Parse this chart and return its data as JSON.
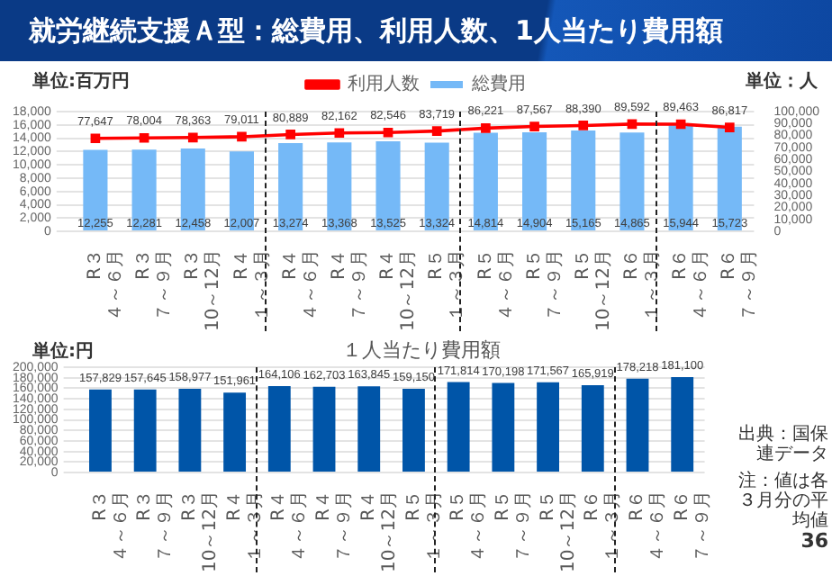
{
  "chart_data": [
    {
      "type": "bar",
      "title": "就労継続支援Ａ型：総費用、利用人数、1人当たり費用額",
      "ylabel": "単位:百万円",
      "y2label": "単位：人",
      "categories": [
        "R３４～６月",
        "R３７～９月",
        "R３10～12月",
        "R４１～３月",
        "R４４～６月",
        "R４７～９月",
        "R４10～12月",
        "R５１～３月",
        "R５４～６月",
        "R５７～９月",
        "R５10～12月",
        "R６１～３月",
        "R６４～６月",
        "R６７～９月"
      ],
      "series": [
        {
          "name": "総費用",
          "type": "bar",
          "color": "#75b9f7",
          "values": [
            12255,
            12281,
            12458,
            12007,
            13274,
            13368,
            13525,
            13324,
            14814,
            14904,
            15165,
            14865,
            15944,
            15723
          ],
          "value_labels": [
            "12,255",
            "12,281",
            "12,458",
            "12,007",
            "13,274",
            "13,368",
            "13,525",
            "13,324",
            "14,814",
            "14,904",
            "15,165",
            "14,865",
            "15,944",
            "15,723"
          ]
        },
        {
          "name": "利用人数",
          "type": "line",
          "axis": "y2",
          "color": "#ff0000",
          "values": [
            77647,
            78004,
            78363,
            79011,
            80889,
            82162,
            82546,
            83719,
            86221,
            87567,
            88390,
            89592,
            89463,
            86817
          ],
          "value_labels": [
            "77,647",
            "78,004",
            "78,363",
            "79,011",
            "80,889",
            "82,162",
            "82,546",
            "83,719",
            "86,221",
            "87,567",
            "88,390",
            "89,592",
            "89,463",
            "86,817"
          ]
        }
      ],
      "ylim": [
        0,
        18000
      ],
      "yticks": [
        0,
        {
          "value": 2000,
          "label": "2,000"
        },
        {
          "value": 4000,
          "label": "4,000"
        },
        {
          "value": 6000,
          "label": "6,000"
        },
        {
          "value": 8000,
          "label": "8,000"
        },
        {
          "value": 10000,
          "label": "10,000"
        },
        {
          "value": 12000,
          "label": "12,000"
        },
        {
          "value": 14000,
          "label": "14,000"
        },
        {
          "value": 16000,
          "label": "16,000"
        },
        {
          "value": 18000,
          "label": "18,000"
        }
      ],
      "y2lim": [
        0,
        100000
      ],
      "y2ticks": [
        0,
        {
          "value": 10000,
          "label": "10,000"
        },
        {
          "value": 20000,
          "label": "20,000"
        },
        {
          "value": 30000,
          "label": "30,000"
        },
        {
          "value": 40000,
          "label": "40,000"
        },
        {
          "value": 50000,
          "label": "50,000"
        },
        {
          "value": 60000,
          "label": "60,000"
        },
        {
          "value": 70000,
          "label": "70,000"
        },
        {
          "value": 80000,
          "label": "80,000"
        },
        {
          "value": 90000,
          "label": "90,000"
        },
        {
          "value": 100000,
          "label": "100,000"
        }
      ],
      "grid": "y",
      "legend": "top",
      "marker": "square",
      "line_style": "solid"
    },
    {
      "type": "bar",
      "title": "１人当たり費用額",
      "ylabel": "単位:円",
      "categories": [
        "R３４～６月",
        "R３７～９月",
        "R３10～12月",
        "R４１～３月",
        "R４４～６月",
        "R４７～９月",
        "R４10～12月",
        "R５１～３月",
        "R５４～６月",
        "R５７～９月",
        "R５10～12月",
        "R６１～３月",
        "R６４～６月",
        "R６７～９月"
      ],
      "series": [
        {
          "color": "#0055a8",
          "values": [
            157829,
            157645,
            158977,
            151961,
            164106,
            162703,
            163845,
            159150,
            171814,
            170198,
            171567,
            165919,
            178218,
            181100
          ],
          "value_labels": [
            "157,829",
            "157,645",
            "158,977",
            "151,961",
            "164,106",
            "162,703",
            "163,845",
            "159,150",
            "171,814",
            "170,198",
            "171,567",
            "165,919",
            "178,218",
            "181,100"
          ]
        }
      ],
      "ylim": [
        0,
        200000
      ],
      "yticks": [
        0,
        {
          "value": 20000,
          "label": "20,000"
        },
        {
          "value": 40000,
          "label": "40,000"
        },
        {
          "value": 60000,
          "label": "60,000"
        },
        {
          "value": 80000,
          "label": "80,000"
        },
        {
          "value": 100000,
          "label": "100,000"
        },
        {
          "value": 120000,
          "label": "120,000"
        },
        {
          "value": 140000,
          "label": "140,000"
        },
        {
          "value": 160000,
          "label": "160,000"
        },
        {
          "value": 180000,
          "label": "180,000"
        },
        {
          "value": 200000,
          "label": "200,000"
        }
      ],
      "grid": "y",
      "legend": false,
      "annotations": [
        "出典：国保連データ",
        "注：値は各３月分の平均値",
        "36"
      ]
    }
  ]
}
